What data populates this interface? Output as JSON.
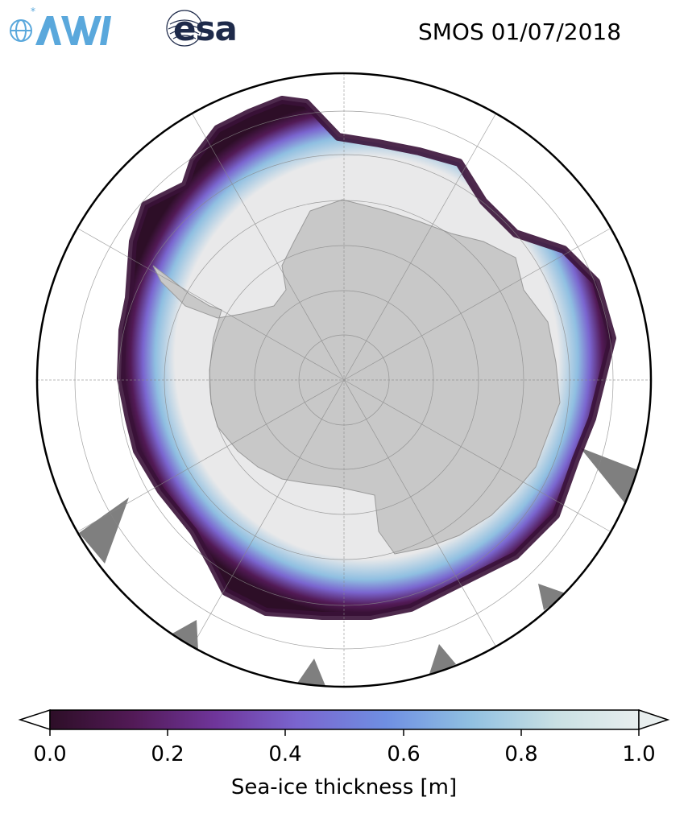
{
  "header": {
    "title": "SMOS 01/07/2018"
  },
  "logos": {
    "awi_text": "AWI",
    "esa_text": "esa"
  },
  "map": {
    "projection": "south-polar-stereographic",
    "graticule": true,
    "colors": {
      "land": "#c8c8c8",
      "thick_ice": "#e9e9ea",
      "thin_ice_edge": "#4a1a4a",
      "mid_ice": "#7a5ab8",
      "no_data_wedges": "#7f7f7f",
      "ocean": "#ffffff"
    }
  },
  "colorbar": {
    "label": "Sea-ice thickness [m]",
    "ticks": [
      "0.0",
      "0.2",
      "0.4",
      "0.6",
      "0.8",
      "1.0"
    ],
    "min": 0.0,
    "max": 1.0,
    "extend": "both",
    "colormap": [
      "#2d0e27",
      "#521a56",
      "#6f359a",
      "#7a65cf",
      "#6f8fe2",
      "#8fbfe1",
      "#c9e0e3",
      "#e8eeee"
    ]
  }
}
